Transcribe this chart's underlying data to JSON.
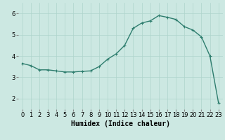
{
  "x": [
    0,
    1,
    2,
    3,
    4,
    5,
    6,
    7,
    8,
    9,
    10,
    11,
    12,
    13,
    14,
    15,
    16,
    17,
    18,
    19,
    20,
    21,
    22,
    23
  ],
  "y": [
    3.65,
    3.55,
    3.35,
    3.35,
    3.3,
    3.25,
    3.25,
    3.28,
    3.3,
    3.5,
    3.85,
    4.1,
    4.5,
    5.3,
    5.55,
    5.65,
    5.9,
    5.82,
    5.72,
    5.38,
    5.22,
    4.9,
    4.0,
    1.8
  ],
  "xlabel": "Humidex (Indice chaleur)",
  "xlim": [
    -0.5,
    23.5
  ],
  "ylim": [
    1.5,
    6.5
  ],
  "yticks": [
    2,
    3,
    4,
    5,
    6
  ],
  "xticks": [
    0,
    1,
    2,
    3,
    4,
    5,
    6,
    7,
    8,
    9,
    10,
    11,
    12,
    13,
    14,
    15,
    16,
    17,
    18,
    19,
    20,
    21,
    22,
    23
  ],
  "line_color": "#2e7d6e",
  "marker": "+",
  "bg_color": "#cce8e2",
  "grid_color": "#aed4cc",
  "tick_label_fontsize": 6,
  "xlabel_fontsize": 7,
  "linewidth": 1.0,
  "markersize": 3,
  "markeredgewidth": 0.8
}
